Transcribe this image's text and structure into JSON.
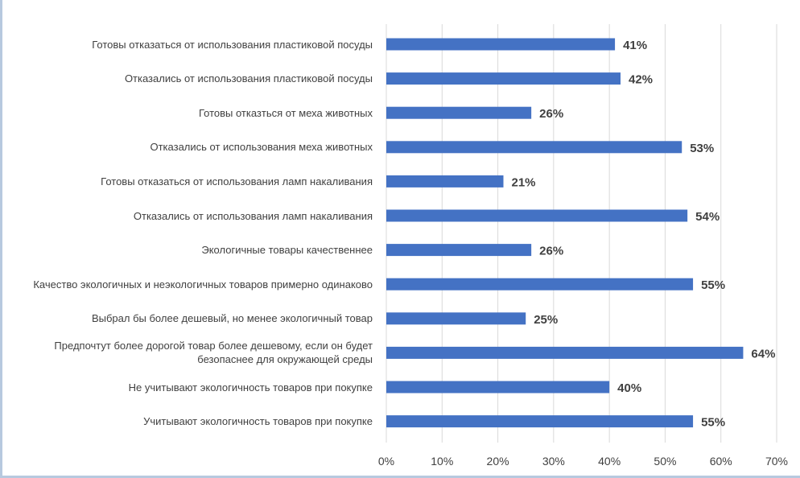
{
  "chart_data": {
    "type": "bar",
    "orientation": "horizontal",
    "categories": [
      "Готовы отказаться от использования пластиковой посуды",
      "Отказались от использования пластиковой посуды",
      "Готовы отказться от меха животных",
      "Отказались от использования  меха животных",
      "Готовы отказаться от использования ламп накаливания",
      "Отказались от  использования ламп накаливания",
      "Экологичные товары качественнее",
      "Качество экологичных и неэкологичных товаров примерно одинаково",
      "Выбрал бы более дешевый, но менее экологичный товар",
      "Предпочтут более дорогой товар более дешевому, если он будет безопаснее для окружающей среды",
      "Не учитывают экологичность товаров при покупке",
      "Учитывают экологичность товаров при покупке"
    ],
    "values": [
      41,
      42,
      26,
      53,
      21,
      54,
      26,
      55,
      25,
      64,
      40,
      55
    ],
    "data_labels": [
      "41%",
      "42%",
      "26%",
      "53%",
      "21%",
      "54%",
      "26%",
      "55%",
      "25%",
      "64%",
      "40%",
      "55%"
    ],
    "xlim": [
      0,
      70
    ],
    "x_ticks": [
      "0%",
      "10%",
      "20%",
      "30%",
      "40%",
      "50%",
      "60%",
      "70%"
    ],
    "bar_color": "#4472c4",
    "grid": true,
    "legend": "none"
  }
}
